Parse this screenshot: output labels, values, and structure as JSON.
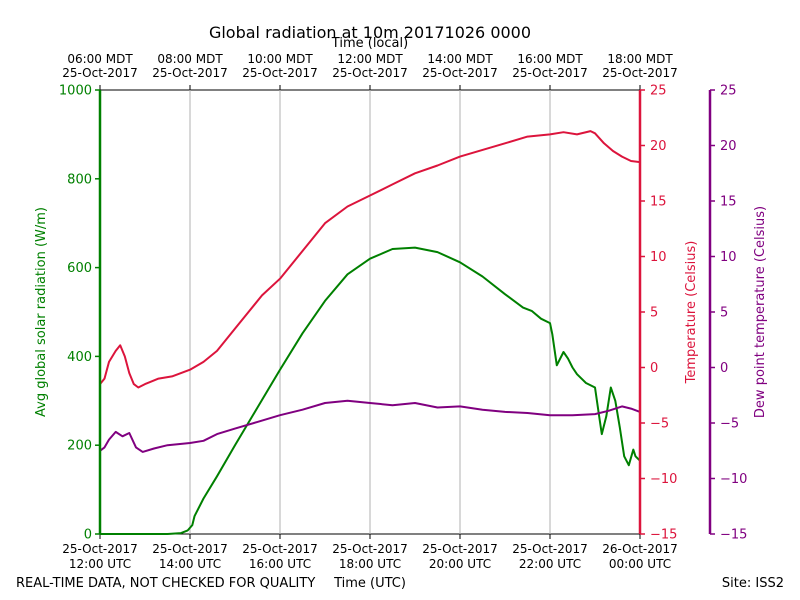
{
  "chart_data": {
    "type": "line",
    "title": "Global radiation at 10m 20171026 0000",
    "top_axis_label": "Time (local)",
    "xlabel": "Time (UTC)",
    "left_ylabel": "Avg global solar radiation (W/m)",
    "right_ylabel_1": "Temperature (Celsius)",
    "right_ylabel_2": "Dew point temperature (Celsius)",
    "footer_left": "REAL-TIME DATA, NOT CHECKED FOR QUALITY",
    "footer_right": "Site: ISS2",
    "x_range_hours_utc": [
      12,
      24
    ],
    "x_ticks": [
      {
        "h": 12,
        "date": "25-Oct-2017",
        "time": "12:00 UTC"
      },
      {
        "h": 14,
        "date": "25-Oct-2017",
        "time": "14:00 UTC"
      },
      {
        "h": 16,
        "date": "25-Oct-2017",
        "time": "16:00 UTC"
      },
      {
        "h": 18,
        "date": "25-Oct-2017",
        "time": "18:00 UTC"
      },
      {
        "h": 20,
        "date": "25-Oct-2017",
        "time": "20:00 UTC"
      },
      {
        "h": 22,
        "date": "25-Oct-2017",
        "time": "22:00 UTC"
      },
      {
        "h": 24,
        "date": "26-Oct-2017",
        "time": "00:00 UTC"
      }
    ],
    "top_ticks": [
      {
        "h": 12,
        "time": "06:00 MDT",
        "date": "25-Oct-2017"
      },
      {
        "h": 14,
        "time": "08:00 MDT",
        "date": "25-Oct-2017"
      },
      {
        "h": 16,
        "time": "10:00 MDT",
        "date": "25-Oct-2017"
      },
      {
        "h": 18,
        "time": "12:00 MDT",
        "date": "25-Oct-2017"
      },
      {
        "h": 20,
        "time": "14:00 MDT",
        "date": "25-Oct-2017"
      },
      {
        "h": 22,
        "time": "16:00 MDT",
        "date": "25-Oct-2017"
      },
      {
        "h": 24,
        "time": "18:00 MDT",
        "date": "25-Oct-2017"
      }
    ],
    "left_axis": {
      "range": [
        0,
        1000
      ],
      "ticks": [
        "0",
        "200",
        "400",
        "600",
        "800",
        "1000"
      ]
    },
    "temp_axis": {
      "range": [
        -15,
        25
      ],
      "ticks": [
        "−15",
        "−10",
        "−5",
        "0",
        "5",
        "10",
        "15",
        "20",
        "25"
      ]
    },
    "dew_axis": {
      "range": [
        -15,
        25
      ],
      "ticks": [
        "−15",
        "−10",
        "−5",
        "0",
        "5",
        "10",
        "15",
        "20",
        "25"
      ]
    },
    "colors": {
      "radiation": "#008000",
      "temperature": "#dc143c",
      "dewpoint": "#800080",
      "grid": "#b0b0b0"
    },
    "series": [
      {
        "name": "Global radiation",
        "axis": "left",
        "x": [
          12.0,
          12.5,
          13.0,
          13.5,
          13.8,
          13.95,
          14.05,
          14.1,
          14.3,
          14.6,
          15.0,
          15.5,
          16.0,
          16.5,
          17.0,
          17.5,
          18.0,
          18.5,
          19.0,
          19.5,
          20.0,
          20.5,
          21.0,
          21.4,
          21.6,
          21.8,
          22.0,
          22.05,
          22.15,
          22.3,
          22.4,
          22.5,
          22.6,
          22.8,
          23.0,
          23.1,
          23.15,
          23.25,
          23.35,
          23.45,
          23.55,
          23.65,
          23.75,
          23.85,
          23.9,
          24.0
        ],
        "y": [
          0,
          0,
          0,
          0,
          2,
          8,
          20,
          40,
          80,
          130,
          200,
          285,
          370,
          452,
          525,
          585,
          620,
          642,
          645,
          635,
          612,
          580,
          540,
          510,
          502,
          485,
          475,
          450,
          380,
          410,
          395,
          375,
          360,
          340,
          330,
          260,
          225,
          265,
          330,
          300,
          240,
          175,
          155,
          190,
          175,
          165
        ]
      },
      {
        "name": "Temperature",
        "axis": "temp",
        "x": [
          12.0,
          12.1,
          12.2,
          12.35,
          12.45,
          12.55,
          12.65,
          12.75,
          12.85,
          13.0,
          13.3,
          13.6,
          13.8,
          14.0,
          14.3,
          14.6,
          15.0,
          15.3,
          15.6,
          16.0,
          16.5,
          17.0,
          17.5,
          18.0,
          18.5,
          19.0,
          19.5,
          20.0,
          20.5,
          21.0,
          21.5,
          22.0,
          22.3,
          22.6,
          22.9,
          23.0,
          23.2,
          23.4,
          23.6,
          23.8,
          24.0
        ],
        "y": [
          -1.5,
          -1.0,
          0.5,
          1.5,
          2.0,
          1.0,
          -0.5,
          -1.5,
          -1.8,
          -1.5,
          -1.0,
          -0.8,
          -0.5,
          -0.2,
          0.5,
          1.5,
          3.5,
          5.0,
          6.5,
          8.0,
          10.5,
          13.0,
          14.5,
          15.5,
          16.5,
          17.5,
          18.2,
          19.0,
          19.6,
          20.2,
          20.8,
          21.0,
          21.2,
          21.0,
          21.3,
          21.1,
          20.2,
          19.5,
          19.0,
          18.6,
          18.5
        ]
      },
      {
        "name": "Dew point",
        "axis": "dew",
        "x": [
          12.0,
          12.1,
          12.2,
          12.35,
          12.5,
          12.65,
          12.8,
          12.95,
          13.2,
          13.5,
          14.0,
          14.3,
          14.6,
          15.0,
          15.5,
          16.0,
          16.5,
          17.0,
          17.5,
          18.0,
          18.5,
          19.0,
          19.5,
          20.0,
          20.5,
          21.0,
          21.5,
          22.0,
          22.5,
          23.0,
          23.3,
          23.6,
          23.8,
          24.0
        ],
        "y": [
          -7.5,
          -7.2,
          -6.5,
          -5.8,
          -6.2,
          -5.9,
          -7.2,
          -7.6,
          -7.3,
          -7.0,
          -6.8,
          -6.6,
          -6.0,
          -5.5,
          -4.9,
          -4.3,
          -3.8,
          -3.2,
          -3.0,
          -3.2,
          -3.4,
          -3.2,
          -3.6,
          -3.5,
          -3.8,
          -4.0,
          -4.1,
          -4.3,
          -4.3,
          -4.2,
          -3.9,
          -3.5,
          -3.7,
          -4.0
        ]
      }
    ]
  }
}
